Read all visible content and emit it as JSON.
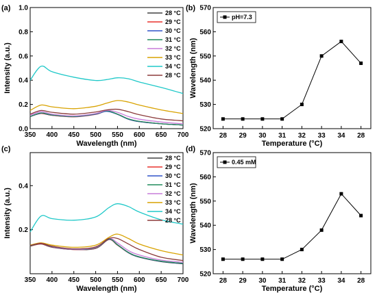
{
  "chart_data": [
    {
      "panel": "(a)",
      "type": "line",
      "xlabel": "Wavelength (nm)",
      "ylabel": "Intensity (a.u.)",
      "xlim": [
        350,
        700
      ],
      "ylim": [
        0.0,
        1.0
      ],
      "xticks": [
        350,
        400,
        450,
        500,
        550,
        600,
        650,
        700
      ],
      "yticks": [
        0.0,
        0.2,
        0.4,
        0.6,
        0.8,
        1.0
      ],
      "x": [
        350,
        375,
        400,
        450,
        500,
        525,
        550,
        575,
        600,
        650,
        700
      ],
      "series": [
        {
          "name": "28 °C",
          "color": "#404040",
          "values": [
            0.1,
            0.125,
            0.11,
            0.1,
            0.12,
            0.145,
            0.12,
            0.08,
            0.06,
            0.04,
            0.03
          ]
        },
        {
          "name": "29 °C",
          "color": "#e8302c",
          "values": [
            0.1,
            0.126,
            0.11,
            0.098,
            0.118,
            0.145,
            0.118,
            0.078,
            0.058,
            0.04,
            0.03
          ]
        },
        {
          "name": "30 °C",
          "color": "#2f52c8",
          "values": [
            0.1,
            0.128,
            0.112,
            0.099,
            0.12,
            0.143,
            0.118,
            0.078,
            0.058,
            0.04,
            0.03
          ]
        },
        {
          "name": "31 °C",
          "color": "#1f8a5c",
          "values": [
            0.1,
            0.13,
            0.113,
            0.1,
            0.122,
            0.147,
            0.12,
            0.08,
            0.06,
            0.04,
            0.03
          ]
        },
        {
          "name": "32 °C",
          "color": "#c77bd8",
          "values": [
            0.11,
            0.14,
            0.12,
            0.105,
            0.125,
            0.15,
            0.135,
            0.1,
            0.078,
            0.055,
            0.04
          ]
        },
        {
          "name": "33 °C",
          "color": "#d8a200",
          "values": [
            0.15,
            0.195,
            0.18,
            0.165,
            0.185,
            0.21,
            0.232,
            0.22,
            0.195,
            0.155,
            0.125
          ]
        },
        {
          "name": "34 °C",
          "color": "#1ec8c8",
          "values": [
            0.4,
            0.515,
            0.47,
            0.425,
            0.398,
            0.405,
            0.42,
            0.412,
            0.385,
            0.34,
            0.29
          ]
        },
        {
          "name": "28 °C",
          "color": "#8b3a3a",
          "values": [
            0.12,
            0.15,
            0.135,
            0.12,
            0.138,
            0.155,
            0.16,
            0.14,
            0.115,
            0.08,
            0.065
          ]
        }
      ]
    },
    {
      "panel": "(b)",
      "type": "line",
      "xlabel": "Temperature (°C)",
      "ylabel": "Wavelength (nm)",
      "ylim": [
        520,
        570
      ],
      "yticks": [
        520,
        530,
        540,
        550,
        560,
        570
      ],
      "categories": [
        "28",
        "29",
        "30",
        "31",
        "32",
        "33",
        "34",
        "28"
      ],
      "series": [
        {
          "name": "pH=7.3",
          "color": "#000000",
          "values": [
            524,
            524,
            524,
            524,
            530,
            550,
            556,
            547
          ]
        }
      ]
    },
    {
      "panel": "(c)",
      "type": "line",
      "xlabel": "Wavelength (nm)",
      "ylabel": "Intensity (a.u.)",
      "xlim": [
        350,
        700
      ],
      "ylim": [
        0.0,
        0.55
      ],
      "xticks": [
        350,
        400,
        450,
        500,
        550,
        600,
        650,
        700
      ],
      "yticks": [
        0.2,
        0.4
      ],
      "x": [
        350,
        375,
        400,
        450,
        500,
        530,
        550,
        575,
        600,
        650,
        700
      ],
      "series": [
        {
          "name": "28 °C",
          "color": "#404040",
          "values": [
            0.125,
            0.135,
            0.12,
            0.11,
            0.115,
            0.155,
            0.13,
            0.095,
            0.075,
            0.055,
            0.045
          ]
        },
        {
          "name": "29 °C",
          "color": "#e8302c",
          "values": [
            0.125,
            0.136,
            0.121,
            0.11,
            0.116,
            0.156,
            0.131,
            0.096,
            0.076,
            0.056,
            0.046
          ]
        },
        {
          "name": "30 °C",
          "color": "#2f52c8",
          "values": [
            0.126,
            0.138,
            0.122,
            0.111,
            0.117,
            0.157,
            0.132,
            0.096,
            0.076,
            0.056,
            0.046
          ]
        },
        {
          "name": "31 °C",
          "color": "#1f8a5c",
          "values": [
            0.126,
            0.139,
            0.123,
            0.112,
            0.118,
            0.158,
            0.132,
            0.097,
            0.077,
            0.057,
            0.047
          ]
        },
        {
          "name": "32 °C",
          "color": "#c77bd8",
          "values": [
            0.128,
            0.14,
            0.124,
            0.112,
            0.12,
            0.16,
            0.14,
            0.105,
            0.085,
            0.062,
            0.052
          ]
        },
        {
          "name": "33 °C",
          "color": "#d8a200",
          "values": [
            0.13,
            0.14,
            0.13,
            0.12,
            0.13,
            0.165,
            0.18,
            0.16,
            0.135,
            0.105,
            0.085
          ]
        },
        {
          "name": "34 °C",
          "color": "#1ec8c8",
          "values": [
            0.19,
            0.262,
            0.25,
            0.243,
            0.258,
            0.3,
            0.318,
            0.305,
            0.28,
            0.245,
            0.225
          ]
        },
        {
          "name": "28 °C",
          "color": "#8b3a3a",
          "values": [
            0.128,
            0.138,
            0.125,
            0.113,
            0.122,
            0.16,
            0.16,
            0.135,
            0.11,
            0.075,
            0.06
          ]
        }
      ]
    },
    {
      "panel": "(d)",
      "type": "line",
      "xlabel": "Temperature (°C)",
      "ylabel": "Wavelength (nm)",
      "ylim": [
        520,
        570
      ],
      "yticks": [
        520,
        530,
        540,
        550,
        560,
        570
      ],
      "categories": [
        "28",
        "29",
        "30",
        "31",
        "32",
        "33",
        "34",
        "28"
      ],
      "series": [
        {
          "name": "0.45 mM",
          "color": "#000000",
          "values": [
            526,
            526,
            526,
            526,
            530,
            538,
            553,
            544
          ]
        }
      ]
    }
  ]
}
